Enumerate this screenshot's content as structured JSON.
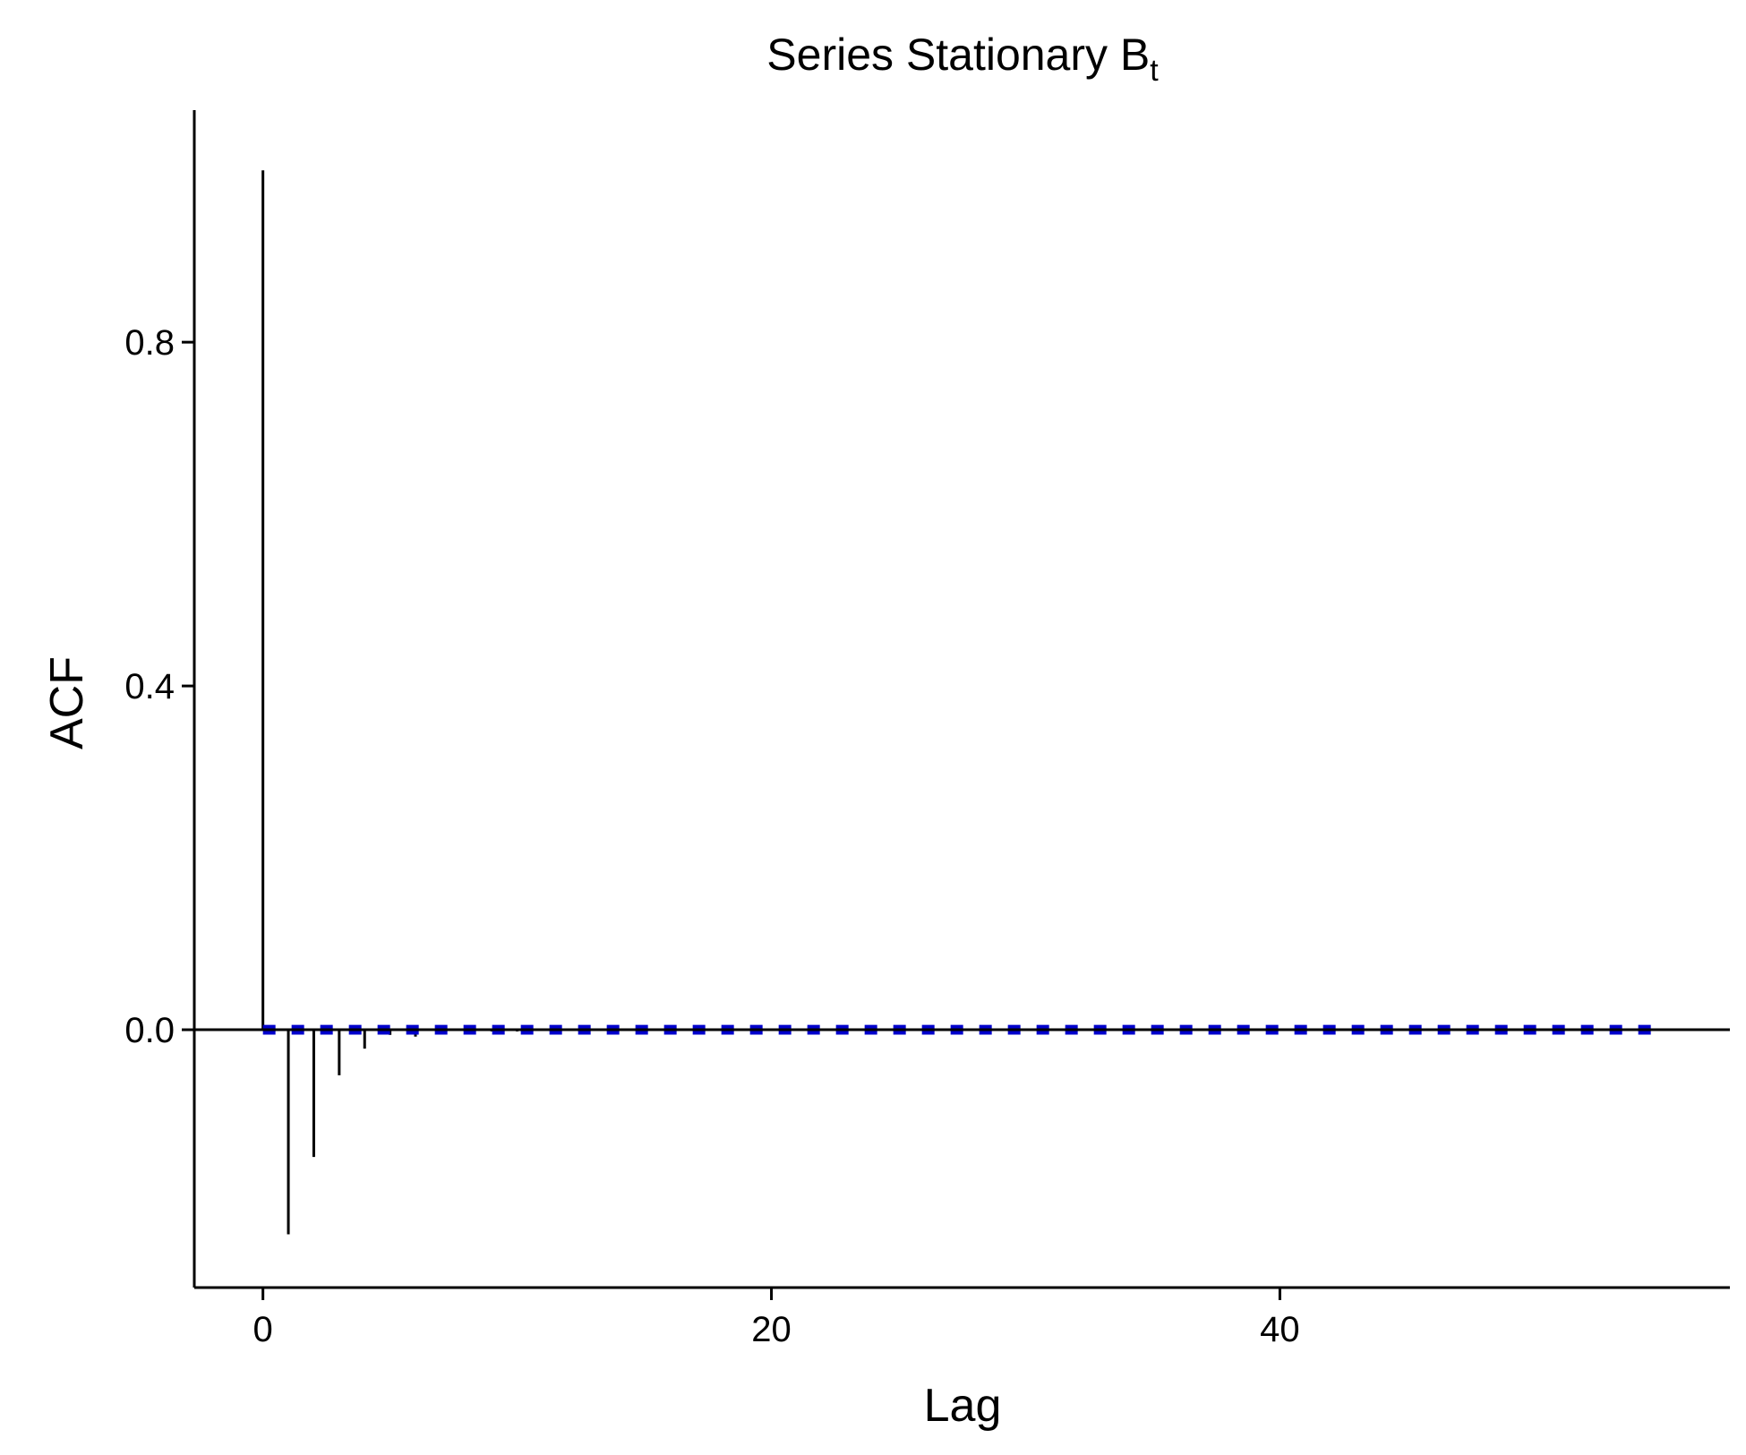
{
  "chart_data": {
    "type": "bar",
    "title_main": "Series Stationary B",
    "title_subscript": "t",
    "xlabel": "Lag",
    "ylabel": "ACF",
    "xlim": [
      -2.7,
      57.7
    ],
    "ylim": [
      -0.3,
      1.07
    ],
    "x_ticks": [
      0,
      20,
      40
    ],
    "y_ticks": [
      0.0,
      0.4,
      0.8
    ],
    "y_tick_labels": [
      "0.0",
      "0.4",
      "0.8"
    ],
    "x_tick_labels": [
      "0",
      "20",
      "40"
    ],
    "lags": [
      0,
      1,
      2,
      3,
      4,
      5,
      6,
      7,
      8,
      9,
      10,
      11,
      12,
      13,
      14,
      15,
      16,
      17,
      18,
      19,
      20,
      21,
      22,
      23,
      24,
      25,
      26,
      27,
      28,
      29,
      30,
      31,
      32,
      33,
      34,
      35,
      36,
      37,
      38,
      39,
      40,
      41,
      42,
      43,
      44,
      45,
      46,
      47,
      48,
      49,
      50,
      51,
      52,
      53,
      54,
      55
    ],
    "acf": [
      1.0,
      -0.238,
      -0.148,
      -0.053,
      -0.022,
      -0.006,
      -0.008,
      -0.003,
      -0.004,
      -0.002,
      -0.002,
      -0.001,
      -0.001,
      -0.001,
      -0.001,
      -0.001,
      -0.001,
      -0.001,
      -0.001,
      -0.001,
      -0.001,
      -0.001,
      -0.001,
      -0.001,
      -0.001,
      -0.001,
      -0.001,
      -0.001,
      -0.001,
      -0.001,
      -0.001,
      -0.001,
      -0.001,
      -0.001,
      -0.001,
      -0.001,
      -0.001,
      -0.001,
      -0.001,
      -0.001,
      -0.001,
      -0.001,
      -0.001,
      -0.001,
      -0.001,
      -0.001,
      -0.001,
      -0.001,
      -0.001,
      -0.001,
      -0.001,
      -0.001,
      -0.001,
      -0.001,
      -0.001,
      -0.001
    ],
    "confidence_bounds": [
      0.002,
      -0.002
    ],
    "confidence_range_x": [
      0,
      55
    ],
    "confidence_color": "#0000cc",
    "bar_color": "#000000",
    "zero_line": true,
    "grid": false
  }
}
